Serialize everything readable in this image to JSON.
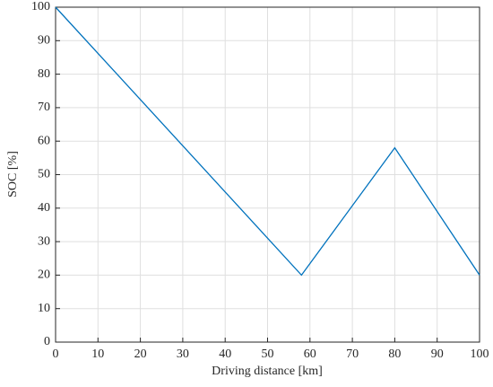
{
  "chart_data": {
    "type": "line",
    "x_label": "Driving distance [km]",
    "y_label": "SOC [%]",
    "x": [
      0,
      58,
      80,
      100
    ],
    "values": [
      100,
      20,
      58,
      20
    ],
    "color": "#0072bd",
    "xlim": [
      0,
      100
    ],
    "ylim": [
      0,
      100
    ],
    "xticks": [
      0,
      10,
      20,
      30,
      40,
      50,
      60,
      70,
      80,
      90,
      100
    ],
    "yticks": [
      0,
      10,
      20,
      30,
      40,
      50,
      60,
      70,
      80,
      90,
      100
    ],
    "grid": true
  }
}
